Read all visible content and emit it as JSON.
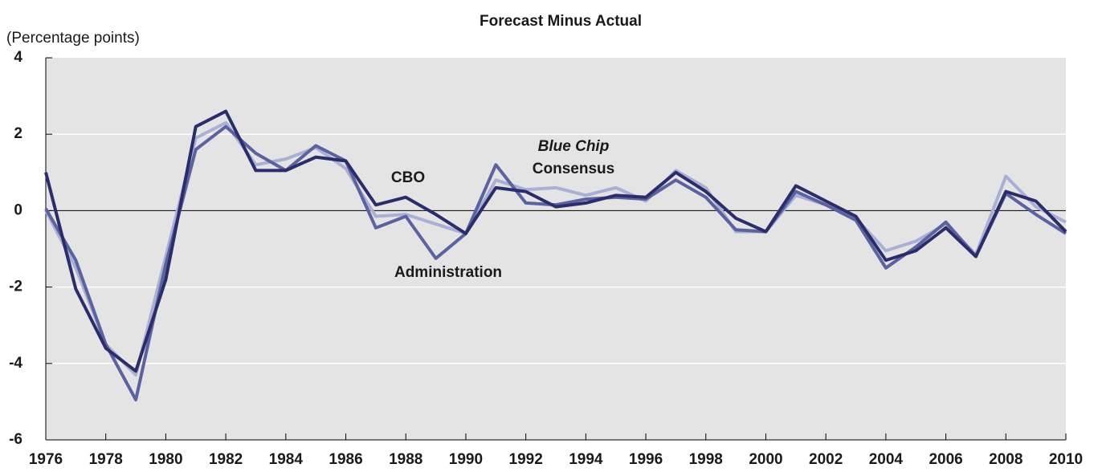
{
  "chart_data": {
    "type": "line",
    "title": "Forecast Minus Actual",
    "y_label": "(Percentage points)",
    "x": [
      1976,
      1977,
      1978,
      1979,
      1980,
      1981,
      1982,
      1983,
      1984,
      1985,
      1986,
      1987,
      1988,
      1989,
      1990,
      1991,
      1992,
      1993,
      1994,
      1995,
      1996,
      1997,
      1998,
      1999,
      2000,
      2001,
      2002,
      2003,
      2004,
      2005,
      2006,
      2007,
      2008,
      2009,
      2010
    ],
    "xlim": [
      1976,
      2010
    ],
    "xticks": [
      1976,
      1978,
      1980,
      1982,
      1984,
      1986,
      1988,
      1990,
      1992,
      1994,
      1996,
      1998,
      2000,
      2002,
      2004,
      2006,
      2008,
      2010
    ],
    "ylim": [
      -6,
      4
    ],
    "yticks": [
      -6,
      -4,
      -2,
      0,
      2,
      4
    ],
    "grid": true,
    "series": [
      {
        "name_parts": [
          "Blue Chip",
          "Consensus"
        ],
        "color": "#aab0d4",
        "values": [
          0.0,
          -1.5,
          -3.5,
          -4.3,
          -1.2,
          1.9,
          2.3,
          1.2,
          1.35,
          1.65,
          1.1,
          -0.15,
          -0.1,
          -0.35,
          -0.6,
          0.8,
          0.55,
          0.6,
          0.4,
          0.6,
          0.25,
          1.05,
          0.6,
          -0.55,
          -0.55,
          0.4,
          0.15,
          -0.2,
          -1.05,
          -0.8,
          -0.35,
          -1.15,
          0.9,
          0.1,
          -0.3
        ]
      },
      {
        "name": "Administration",
        "color": "#5b62a0",
        "values": [
          0.05,
          -1.3,
          -3.5,
          -4.95,
          -1.4,
          1.6,
          2.2,
          1.5,
          1.05,
          1.7,
          1.3,
          -0.45,
          -0.15,
          -1.25,
          -0.6,
          1.2,
          0.2,
          0.15,
          0.3,
          0.35,
          0.3,
          0.8,
          0.35,
          -0.5,
          -0.55,
          0.5,
          0.15,
          -0.25,
          -1.5,
          -0.95,
          -0.3,
          -1.2,
          0.45,
          -0.1,
          -0.6
        ]
      },
      {
        "name": "CBO",
        "color": "#2b2d6b",
        "values": [
          1.0,
          -2.05,
          -3.6,
          -4.2,
          -1.8,
          2.2,
          2.6,
          1.05,
          1.05,
          1.4,
          1.3,
          0.15,
          0.35,
          -0.1,
          -0.6,
          0.6,
          0.5,
          0.1,
          0.2,
          0.4,
          0.35,
          1.0,
          0.5,
          -0.2,
          -0.55,
          0.65,
          0.25,
          -0.15,
          -1.3,
          -1.05,
          -0.45,
          -1.2,
          0.5,
          0.25,
          -0.55
        ]
      }
    ]
  }
}
